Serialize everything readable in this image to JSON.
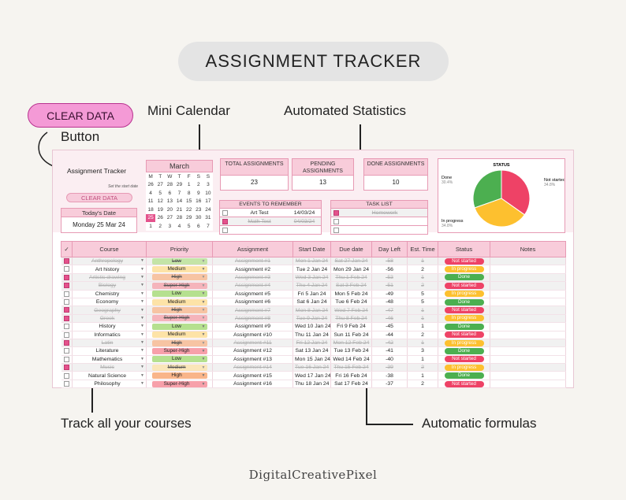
{
  "banner_title": "ASSIGNMENT TRACKER",
  "clear_pill": "CLEAR DATA",
  "callouts": {
    "button": "Button",
    "mini_calendar": "Mini Calendar",
    "automated_statistics": "Automated Statistics",
    "track_courses": "Track all your courses",
    "automatic_formulas": "Automatic formulas"
  },
  "footer_brand": "DigitalCreativePixel",
  "sheet": {
    "title": "Assignment Tracker",
    "start_date_hint": "Set the start date",
    "clear_button": "CLEAR DATA",
    "today_label": "Today's Date",
    "today_value": "Monday 25 Mar 24",
    "calendar": {
      "month": "March",
      "weekdays": [
        "M",
        "T",
        "W",
        "T",
        "F",
        "S",
        "S"
      ],
      "weeks": [
        [
          "26",
          "27",
          "28",
          "29",
          "1",
          "2",
          "3"
        ],
        [
          "4",
          "5",
          "6",
          "7",
          "8",
          "9",
          "10"
        ],
        [
          "11",
          "12",
          "13",
          "14",
          "15",
          "16",
          "17"
        ],
        [
          "18",
          "19",
          "20",
          "21",
          "22",
          "23",
          "24"
        ],
        [
          "25",
          "26",
          "27",
          "28",
          "29",
          "30",
          "31"
        ],
        [
          "1",
          "2",
          "3",
          "4",
          "5",
          "6",
          "7"
        ]
      ],
      "highlight": "25"
    },
    "stats": {
      "total_label": "TOTAL ASSIGNMENTS",
      "total_value": "23",
      "pending_label": "PENDING ASSIGNMENTS",
      "pending_value": "13",
      "done_label": "DONE ASSIGNMENTS",
      "done_value": "10"
    },
    "events": {
      "header": "EVENTS TO REMEMBER",
      "rows": [
        {
          "checked": false,
          "name": "Art Test",
          "date": "14/03/24",
          "done": false
        },
        {
          "checked": true,
          "name": "Math Test",
          "date": "04/03/24",
          "done": true
        },
        {
          "checked": false,
          "name": "",
          "date": "",
          "done": false
        }
      ]
    },
    "tasks": {
      "header": "TASK LIST",
      "rows": [
        {
          "checked": true,
          "name": "Homework",
          "done": true
        },
        {
          "checked": false,
          "name": "",
          "done": false
        },
        {
          "checked": false,
          "name": "",
          "done": false
        }
      ]
    },
    "pie": {
      "title": "STATUS",
      "slices": [
        {
          "label": "Done",
          "pct": "30.4%",
          "value": 30.4,
          "color": "#4caf50"
        },
        {
          "label": "Not started",
          "pct": "34.8%",
          "value": 34.8,
          "color": "#ee4266"
        },
        {
          "label": "In progress",
          "pct": "34.8%",
          "value": 34.8,
          "color": "#fdc02f"
        }
      ]
    },
    "columns": [
      "Course",
      "Priority",
      "Assignment",
      "Start Date",
      "Due date",
      "Day Left",
      "Est. Time",
      "Status",
      "Notes"
    ],
    "check_header": "✓",
    "priority_colors": {
      "Low": "#b5e08f",
      "Medium": "#fde3a7",
      "High": "#f9b58a",
      "Super-High": "#f7a0aa"
    },
    "status_colors": {
      "Not started": "#ee4266",
      "In progress": "#fdc02f",
      "Done": "#4caf50"
    },
    "rows": [
      {
        "checked": true,
        "course": "Anthropology",
        "priority": "Low",
        "assignment": "Assignment #1",
        "start": "Mon 1 Jan 24",
        "due": "Sat 27 Jan 24",
        "left": "-58",
        "est": "1",
        "status": "Not started",
        "done": true
      },
      {
        "checked": false,
        "course": "Art history",
        "priority": "Medium",
        "assignment": "Assignment #2",
        "start": "Tue 2 Jan 24",
        "due": "Mon 29 Jan 24",
        "left": "-56",
        "est": "2",
        "status": "In progress",
        "done": false
      },
      {
        "checked": true,
        "course": "Artistic drawing",
        "priority": "High",
        "assignment": "Assignment #3",
        "start": "Wed 3 Jan 24",
        "due": "Thu 1 Feb 24",
        "left": "-53",
        "est": "1",
        "status": "Done",
        "done": true
      },
      {
        "checked": true,
        "course": "Biology",
        "priority": "Super-High",
        "assignment": "Assignment #4",
        "start": "Thu 4 Jan 24",
        "due": "Sat 3 Feb 24",
        "left": "-51",
        "est": "2",
        "status": "Not started",
        "done": true
      },
      {
        "checked": false,
        "course": "Chemistry",
        "priority": "Low",
        "assignment": "Assignment #5",
        "start": "Fri 5 Jan 24",
        "due": "Mon 5 Feb 24",
        "left": "-49",
        "est": "5",
        "status": "In progress",
        "done": false
      },
      {
        "checked": false,
        "course": "Economy",
        "priority": "Medium",
        "assignment": "Assignment #6",
        "start": "Sat 6 Jan 24",
        "due": "Tue 6 Feb 24",
        "left": "-48",
        "est": "5",
        "status": "Done",
        "done": false
      },
      {
        "checked": true,
        "course": "Geography",
        "priority": "High",
        "assignment": "Assignment #7",
        "start": "Mon 8 Jan 24",
        "due": "Wed 7 Feb 24",
        "left": "-47",
        "est": "1",
        "status": "Not started",
        "done": true
      },
      {
        "checked": true,
        "course": "Greek",
        "priority": "Super-High",
        "assignment": "Assignment #8",
        "start": "Tue 9 Jan 24",
        "due": "Thu 8 Feb 24",
        "left": "-46",
        "est": "1",
        "status": "In progress",
        "done": true
      },
      {
        "checked": false,
        "course": "History",
        "priority": "Low",
        "assignment": "Assignment #9",
        "start": "Wed 10 Jan 24",
        "due": "Fri 9 Feb 24",
        "left": "-45",
        "est": "1",
        "status": "Done",
        "done": false
      },
      {
        "checked": false,
        "course": "Informatics",
        "priority": "Medium",
        "assignment": "Assignment #10",
        "start": "Thu 11 Jan 24",
        "due": "Sun 11 Feb 24",
        "left": "-44",
        "est": "2",
        "status": "Not started",
        "done": false
      },
      {
        "checked": true,
        "course": "Latin",
        "priority": "High",
        "assignment": "Assignment #11",
        "start": "Fri 12 Jan 24",
        "due": "Mon 12 Feb 24",
        "left": "-42",
        "est": "1",
        "status": "In progress",
        "done": true
      },
      {
        "checked": false,
        "course": "Literature",
        "priority": "Super-High",
        "assignment": "Assignment #12",
        "start": "Sat 13 Jan 24",
        "due": "Tue 13 Feb 24",
        "left": "-41",
        "est": "3",
        "status": "Done",
        "done": false
      },
      {
        "checked": false,
        "course": "Mathematics",
        "priority": "Low",
        "assignment": "Assignment #13",
        "start": "Mon 15 Jan 24",
        "due": "Wed 14 Feb 24",
        "left": "-40",
        "est": "1",
        "status": "Not started",
        "done": false
      },
      {
        "checked": true,
        "course": "Music",
        "priority": "Medium",
        "assignment": "Assignment #14",
        "start": "Tue 16 Jan 24",
        "due": "Thu 15 Feb 24",
        "left": "-39",
        "est": "2",
        "status": "In progress",
        "done": true
      },
      {
        "checked": false,
        "course": "Natural Science",
        "priority": "High",
        "assignment": "Assignment #15",
        "start": "Wed 17 Jan 24",
        "due": "Fri 16 Feb 24",
        "left": "-38",
        "est": "1",
        "status": "Done",
        "done": false
      },
      {
        "checked": false,
        "course": "Philosophy",
        "priority": "Super-High",
        "assignment": "Assignment #16",
        "start": "Thu 18 Jan 24",
        "due": "Sat 17 Feb 24",
        "left": "-37",
        "est": "2",
        "status": "Not started",
        "done": false
      }
    ]
  }
}
